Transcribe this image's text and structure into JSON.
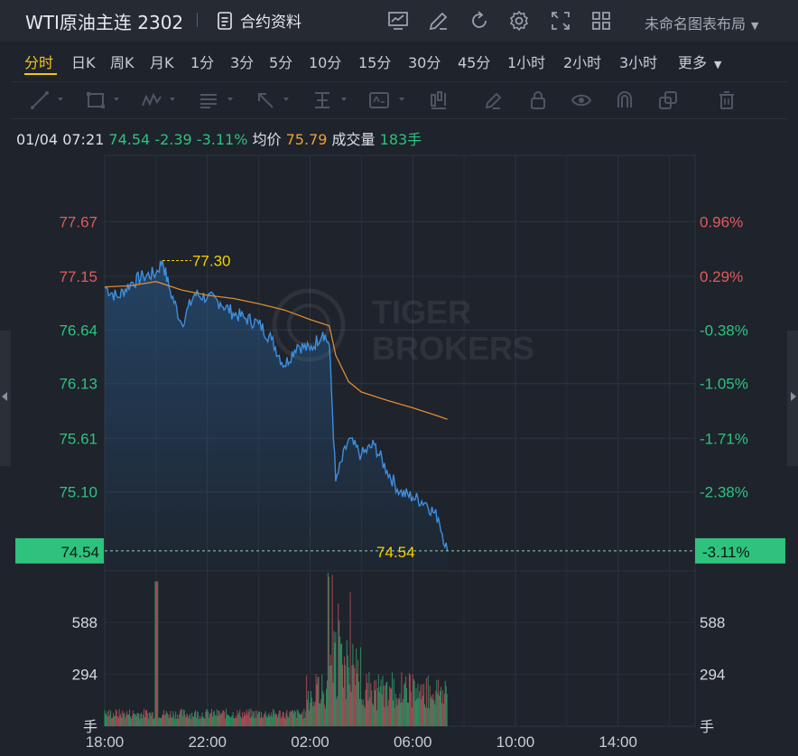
{
  "header": {
    "title": "WTI原油主连 2302",
    "contract_info": "合约资料",
    "layout_name": "未命名图表布局",
    "icons": [
      "chart-icon",
      "pencil-icon",
      "refresh-icon",
      "gear-icon",
      "fullscreen-icon",
      "grid-icon"
    ]
  },
  "periods": {
    "items": [
      "分时",
      "日K",
      "周K",
      "月K",
      "1分",
      "3分",
      "5分",
      "10分",
      "15分",
      "30分",
      "45分",
      "1小时",
      "2小时",
      "3小时"
    ],
    "more": "更多",
    "active": "分时"
  },
  "drawing_tools": [
    "trendline-icon",
    "rectangle-icon",
    "wave-icon",
    "fib-icon",
    "arrow-icon",
    "measure-icon",
    "text-label-icon",
    "bars-icon",
    "brush-icon",
    "lock-icon",
    "eye-icon",
    "magnet-icon",
    "copy-icon",
    "trash-icon"
  ],
  "info": {
    "datetime": "01/04 07:21",
    "price": "74.54",
    "change": "-2.39",
    "change_pct": "-3.11%",
    "avg_label": "均价",
    "avg_value": "75.79",
    "volume_label": "成交量",
    "volume_value": "183手"
  },
  "colors": {
    "background": "#1e232c",
    "up": "#e05c5c",
    "down": "#2ec27e",
    "price_line": "#3c8fe0",
    "avg_line": "#e08a30",
    "label_yellow": "#f5d000",
    "current_box": "#2ec27e"
  },
  "watermark": {
    "line1": "TIGER",
    "line2": "BROKERS"
  },
  "chart_data": {
    "type": "line",
    "title": "",
    "x_ticks": [
      "18:00",
      "22:00",
      "02:00",
      "06:00",
      "10:00",
      "14:00"
    ],
    "y_ticks": [
      "77.67",
      "77.15",
      "76.64",
      "76.13",
      "75.61",
      "75.10"
    ],
    "y_ticks_pct": [
      "0.96%",
      "0.29%",
      "-0.38%",
      "-1.05%",
      "-1.71%",
      "-2.38%"
    ],
    "ylim": [
      74.35,
      78.3
    ],
    "current_price": "74.54",
    "current_pct": "-3.11%",
    "high_label": "77.30",
    "last_label": "74.54",
    "series": [
      {
        "name": "",
        "x": [
          "18:00",
          "18:30",
          "19:00",
          "19:30",
          "20:00",
          "20:15",
          "20:30",
          "21:00",
          "21:30",
          "22:00",
          "22:30",
          "23:00",
          "23:30",
          "00:00",
          "00:30",
          "01:00",
          "01:30",
          "02:00",
          "02:30",
          "02:45",
          "03:00",
          "03:30",
          "04:00",
          "04:30",
          "05:00",
          "05:30",
          "06:00",
          "06:30",
          "07:00",
          "07:21"
        ],
        "values": [
          77.05,
          76.95,
          77.08,
          77.15,
          77.18,
          77.3,
          77.05,
          76.7,
          76.98,
          76.95,
          76.9,
          76.8,
          76.75,
          76.7,
          76.55,
          76.3,
          76.5,
          76.45,
          76.62,
          76.5,
          75.2,
          75.6,
          75.45,
          75.55,
          75.3,
          75.1,
          75.05,
          75.0,
          74.85,
          74.54
        ]
      },
      {
        "name": "均价",
        "x": [
          "18:00",
          "19:00",
          "20:00",
          "21:00",
          "22:00",
          "23:00",
          "00:00",
          "01:00",
          "02:00",
          "02:45",
          "03:00",
          "03:30",
          "04:00",
          "05:00",
          "06:00",
          "07:00",
          "07:21"
        ],
        "values": [
          77.05,
          77.06,
          77.1,
          77.02,
          76.97,
          76.94,
          76.89,
          76.83,
          76.74,
          76.68,
          76.4,
          76.15,
          76.05,
          75.97,
          75.9,
          75.82,
          75.79
        ]
      }
    ],
    "volume": {
      "y_ticks": [
        "588",
        "294"
      ],
      "unit": "手",
      "ylim": [
        0,
        880
      ]
    }
  }
}
